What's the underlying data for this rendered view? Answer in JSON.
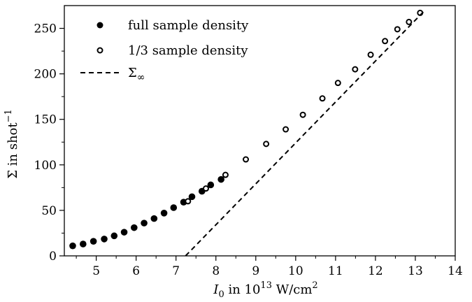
{
  "chart_data": {
    "type": "scatter",
    "xlim": [
      4.2,
      14
    ],
    "ylim": [
      0,
      275
    ],
    "x_ticks": [
      5,
      6,
      7,
      8,
      9,
      10,
      11,
      12,
      13,
      14
    ],
    "y_ticks": [
      0,
      50,
      100,
      150,
      200,
      250
    ],
    "x_minor_ticks": [
      4.5,
      5.5,
      6.5,
      7.5,
      8.5,
      9.5,
      10.5,
      11.5,
      12.5,
      13.5
    ],
    "y_minor_ticks": [
      25,
      75,
      125,
      175,
      225
    ],
    "xlabel": {
      "var": "I",
      "sub": "0",
      "text": " in 10",
      "sup": "13",
      "unit": " W/cm",
      "unit_sup": "2"
    },
    "ylabel": {
      "var": "Σ",
      "text": " in shot",
      "sup": "−1"
    },
    "grid": false,
    "legend_position": "upper-left",
    "series": [
      {
        "name": "full sample density",
        "marker": "filled-circle",
        "color": "#000000",
        "x": [
          4.41,
          4.67,
          4.93,
          5.2,
          5.45,
          5.7,
          5.95,
          6.2,
          6.45,
          6.7,
          6.94,
          7.19,
          7.4,
          7.65,
          7.87,
          8.13
        ],
        "y": [
          11,
          13,
          16,
          18.5,
          22,
          26,
          31,
          36,
          41,
          47,
          53,
          59,
          65,
          71,
          78,
          84
        ]
      },
      {
        "name": "1/3 sample density",
        "marker": "open-circle",
        "color": "#000000",
        "x": [
          7.3,
          7.75,
          8.24,
          8.75,
          9.26,
          9.75,
          10.18,
          10.67,
          11.06,
          11.49,
          11.88,
          12.24,
          12.55,
          12.84,
          13.12
        ],
        "y": [
          60,
          74,
          89,
          106,
          123,
          139,
          155,
          173,
          190,
          205,
          221,
          236,
          249,
          257,
          267
        ]
      },
      {
        "name": "Σ∞",
        "marker": "dashed-line",
        "color": "#000000",
        "x": [
          7.24,
          13.2
        ],
        "y": [
          0,
          268
        ]
      }
    ],
    "legend": [
      {
        "label": "full sample density"
      },
      {
        "label": "1/3 sample density"
      },
      {
        "label_base": "Σ",
        "label_sub": "∞"
      }
    ]
  }
}
